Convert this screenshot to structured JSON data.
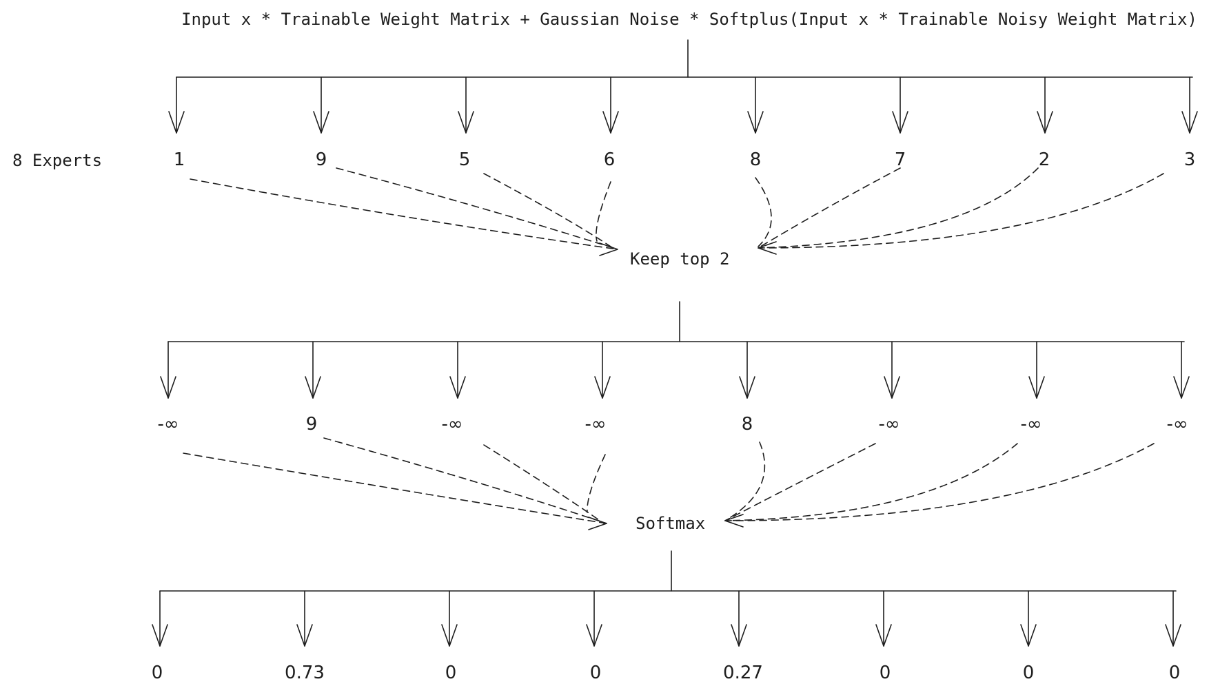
{
  "formula": "Input x * Trainable Weight Matrix + Gaussian Noise * Softplus(Input x * Trainable Noisy Weight Matrix)",
  "experts_label": "8 Experts",
  "expert_scores": [
    "1",
    "9",
    "5",
    "6",
    "8",
    "7",
    "2",
    "3"
  ],
  "keep_label": "Keep top 2",
  "masked_scores": [
    "-∞",
    "9",
    "-∞",
    "-∞",
    "8",
    "-∞",
    "-∞",
    "-∞"
  ],
  "softmax_label": "Softmax",
  "outputs": [
    "0",
    "0.73",
    "0",
    "0",
    "0.27",
    "0",
    "0",
    "0"
  ]
}
